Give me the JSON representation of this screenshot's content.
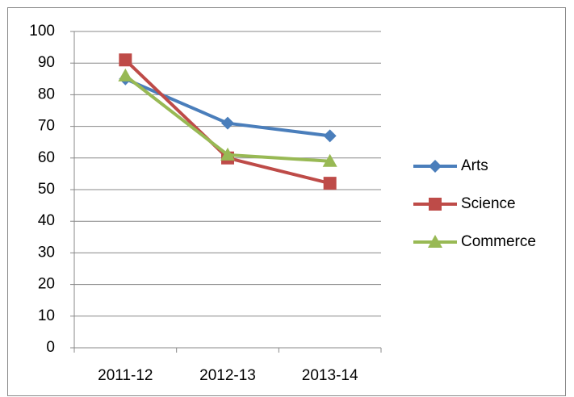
{
  "chart_data": {
    "type": "line",
    "categories": [
      "2011-12",
      "2012-13",
      "2013-14"
    ],
    "series": [
      {
        "name": "Arts",
        "color": "#4a7ebb",
        "marker": "diamond",
        "values": [
          85,
          71,
          67
        ]
      },
      {
        "name": "Science",
        "color": "#be4b48",
        "marker": "square",
        "values": [
          91,
          60,
          52
        ]
      },
      {
        "name": "Commerce",
        "color": "#98b954",
        "marker": "triangle",
        "values": [
          86,
          61,
          59
        ]
      }
    ],
    "ylim": [
      0,
      100
    ],
    "yticks": [
      0,
      10,
      20,
      30,
      40,
      50,
      60,
      70,
      80,
      90,
      100
    ],
    "grid": true,
    "legend": "right"
  }
}
